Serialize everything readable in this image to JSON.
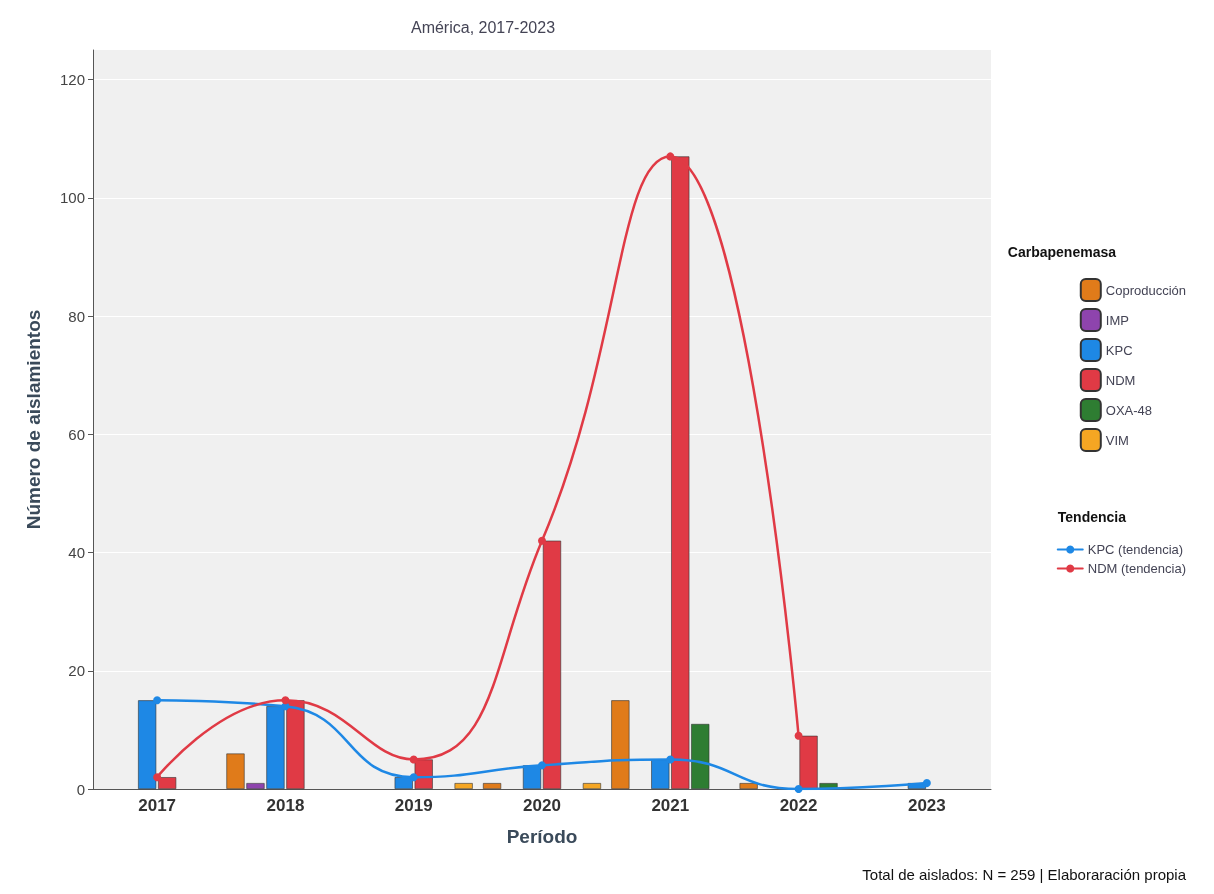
{
  "chart_data": {
    "type": "bar",
    "title": "América, 2017-2023",
    "xlabel": "Período",
    "ylabel": "Número de aislamientos",
    "legend_title": [
      "Carbapenemasa",
      "Tendencia"
    ],
    "categories": [
      "2017",
      "2018",
      "2019",
      "2020",
      "2021",
      "2022",
      "2023"
    ],
    "series": [
      {
        "name": "Coproducción",
        "color": "#e07b1a",
        "values": [
          null,
          6,
          null,
          1,
          15,
          1,
          null
        ]
      },
      {
        "name": "IMP",
        "color": "#8e44ad",
        "values": [
          null,
          1,
          null,
          null,
          null,
          null,
          null
        ]
      },
      {
        "name": "KPC",
        "color": "#1e88e5",
        "values": [
          15,
          14,
          2,
          4,
          5,
          null,
          1
        ]
      },
      {
        "name": "NDM",
        "color": "#e03a45",
        "values": [
          2,
          15,
          5,
          42,
          107,
          9,
          null
        ]
      },
      {
        "name": "OXA-48",
        "color": "#2e7d32",
        "values": [
          null,
          null,
          null,
          null,
          11,
          1,
          null
        ]
      },
      {
        "name": "VIM",
        "color": "#f5a623",
        "values": [
          null,
          null,
          1,
          1,
          null,
          null,
          null
        ]
      },
      {
        "name": "KPC (tendencia)",
        "type": "line",
        "color": "#1e88e5",
        "values": [
          15,
          14,
          2,
          4,
          5,
          0,
          1
        ]
      },
      {
        "name": "NDM (tendencia)",
        "type": "line",
        "color": "#e03a45",
        "values": [
          2,
          15,
          5,
          42,
          107,
          9,
          null
        ]
      }
    ],
    "ylim": [
      0,
      125
    ],
    "yticks": [
      0,
      20,
      40,
      60,
      80,
      100,
      120
    ],
    "grid": "y",
    "legend": "right",
    "marker": "circle",
    "annotations": [
      "Total de aislados: N = 259 | Elaboraración propia"
    ]
  }
}
